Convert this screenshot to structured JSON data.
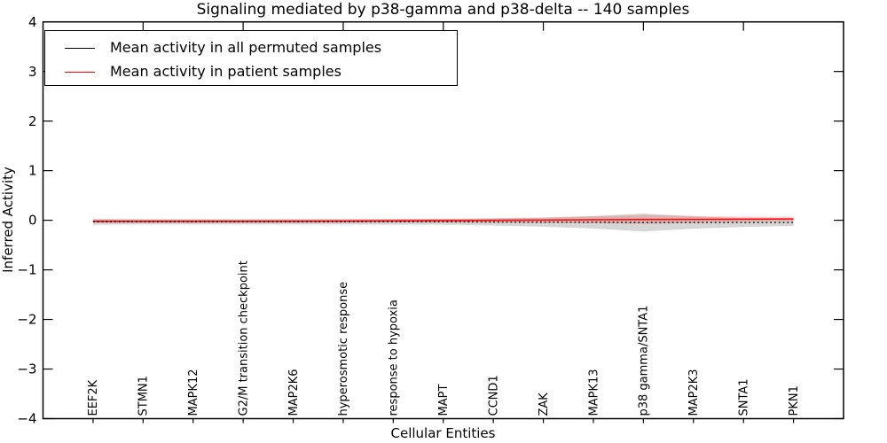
{
  "title": "Signaling mediated by p38-gamma and p38-delta -- 140 samples",
  "axes": {
    "xlabel": "Cellular Entities",
    "ylabel": "Inferred Activity"
  },
  "legend": {
    "items": [
      {
        "label": "Mean activity in all permuted samples",
        "color": "#000000"
      },
      {
        "label": "Mean activity in patient samples",
        "color": "#ff0000"
      }
    ]
  },
  "chart_data": {
    "type": "line",
    "title": "Signaling mediated by p38-gamma and p38-delta -- 140 samples",
    "xlabel": "Cellular Entities",
    "ylabel": "Inferred Activity",
    "ylim": [
      -4,
      4
    ],
    "yticks": [
      4,
      3,
      2,
      1,
      0,
      -1,
      -2,
      -3,
      -4
    ],
    "grid": false,
    "legend_position": "upper left",
    "categories": [
      "EEF2K",
      "STMN1",
      "MAPK12",
      "G2/M transition checkpoint",
      "MAP2K6",
      "hyperosmotic response",
      "response to hypoxia",
      "MAPT",
      "CCND1",
      "ZAK",
      "MAPK13",
      "p38 gamma/SNTA1",
      "MAP2K3",
      "SNTA1",
      "PKN1"
    ],
    "series": [
      {
        "name": "Mean activity in all permuted samples",
        "color": "#000000",
        "line_style": "dotted",
        "values": [
          -0.03,
          -0.03,
          -0.03,
          -0.03,
          -0.03,
          -0.03,
          -0.03,
          -0.03,
          -0.035,
          -0.04,
          -0.04,
          -0.045,
          -0.045,
          -0.045,
          -0.045
        ],
        "band_halfwidth": [
          0.06,
          0.055,
          0.055,
          0.055,
          0.055,
          0.055,
          0.06,
          0.06,
          0.07,
          0.09,
          0.125,
          0.18,
          0.125,
          0.09,
          0.07
        ],
        "band_color": "rgba(120,120,120,0.30)"
      },
      {
        "name": "Mean activity in patient samples",
        "color": "#ff0000",
        "line_style": "solid",
        "values": [
          -0.02,
          -0.02,
          -0.02,
          -0.02,
          -0.018,
          -0.015,
          -0.012,
          -0.008,
          0.0,
          0.005,
          0.01,
          0.015,
          0.018,
          0.022,
          0.027
        ],
        "band_halfwidth": [
          0.035,
          0.035,
          0.035,
          0.035,
          0.035,
          0.035,
          0.035,
          0.04,
          0.045,
          0.055,
          0.07,
          0.09,
          0.07,
          0.055,
          0.045
        ],
        "band_color": "rgba(255,0,0,0.16)"
      }
    ]
  }
}
